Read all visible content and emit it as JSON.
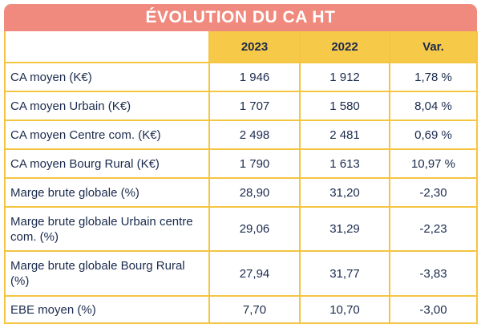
{
  "title": "ÉVOLUTION DU CA HT",
  "columns": [
    "",
    "2023",
    "2022",
    "Var."
  ],
  "rows": [
    {
      "label": "CA moyen (K€)",
      "y2023": "1 946",
      "y2022": "1 912",
      "var": "1,78 %"
    },
    {
      "label": "CA moyen Urbain (K€)",
      "y2023": "1 707",
      "y2022": "1 580",
      "var": "8,04 %"
    },
    {
      "label": "CA moyen Centre com. (K€)",
      "y2023": "2 498",
      "y2022": "2 481",
      "var": "0,69 %"
    },
    {
      "label": "CA moyen Bourg Rural (K€)",
      "y2023": "1 790",
      "y2022": "1 613",
      "var": "10,97 %"
    },
    {
      "label": "Marge brute globale (%)",
      "y2023": "28,90",
      "y2022": "31,20",
      "var": "-2,30"
    },
    {
      "label": "Marge brute globale Urbain centre com. (%)",
      "y2023": "29,06",
      "y2022": "31,29",
      "var": "-2,23"
    },
    {
      "label": "Marge brute globale Bourg Rural (%)",
      "y2023": "27,94",
      "y2022": "31,77",
      "var": "-3,83"
    },
    {
      "label": "EBE moyen (%)",
      "y2023": "7,70",
      "y2022": "10,70",
      "var": "-3,00"
    }
  ],
  "colors": {
    "title_bg": "#f08a7e",
    "header_bg": "#f7c948",
    "border": "#f5c542",
    "text": "#1a2a4d"
  }
}
